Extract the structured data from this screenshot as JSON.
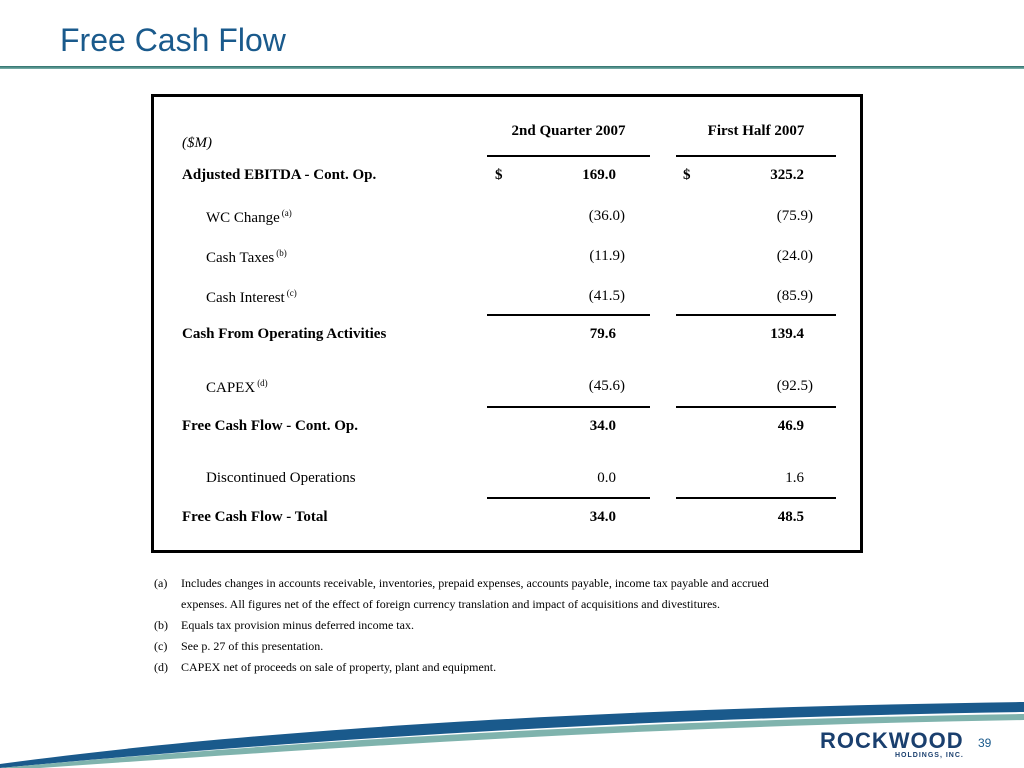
{
  "title": "Free Cash Flow",
  "table": {
    "unit_label": "($M)",
    "col1_header": "2nd Quarter 2007",
    "col2_header": "First Half 2007",
    "currency_symbol": "$",
    "rows": [
      {
        "label": "Adjusted EBITDA - Cont. Op.",
        "sup": "",
        "q2": "169.0",
        "h1": "325.2"
      },
      {
        "label": "WC Change",
        "sup": "(a)",
        "q2": "(36.0)",
        "h1": "(75.9)"
      },
      {
        "label": "Cash Taxes",
        "sup": "(b)",
        "q2": "(11.9)",
        "h1": "(24.0)"
      },
      {
        "label": "Cash Interest",
        "sup": "(c)",
        "q2": "(41.5)",
        "h1": "(85.9)"
      },
      {
        "label": "Cash From Operating Activities",
        "sup": "",
        "q2": "79.6",
        "h1": "139.4"
      },
      {
        "label": "CAPEX",
        "sup": "(d)",
        "q2": "(45.6)",
        "h1": "(92.5)"
      },
      {
        "label": "Free Cash Flow - Cont. Op.",
        "sup": "",
        "q2": "34.0",
        "h1": "46.9"
      },
      {
        "label": "Discontinued Operations",
        "sup": "",
        "q2": "0.0",
        "h1": "1.6"
      },
      {
        "label": "Free Cash Flow - Total",
        "sup": "",
        "q2": "34.0",
        "h1": "48.5"
      }
    ]
  },
  "footnotes": [
    {
      "tag": "(a)",
      "text": "Includes changes in accounts receivable, inventories, prepaid expenses, accounts payable, income tax payable and accrued expenses.  All figures net of the effect of foreign currency translation and impact of acquisitions and divestitures."
    },
    {
      "tag": "(b)",
      "text": "Equals tax provision minus deferred income tax."
    },
    {
      "tag": "(c)",
      "text": "See p. 27 of this presentation."
    },
    {
      "tag": "(d)",
      "text": "CAPEX net of proceeds on sale of property, plant and equipment."
    }
  ],
  "logo": {
    "name": "ROCKWOOD",
    "sub": "HOLDINGS, INC."
  },
  "page_number": "39",
  "colors": {
    "title": "#1a5a8c",
    "rule": "#2b6f6a",
    "swoosh": "#1a5a8c",
    "logo": "#1a3f6e"
  }
}
